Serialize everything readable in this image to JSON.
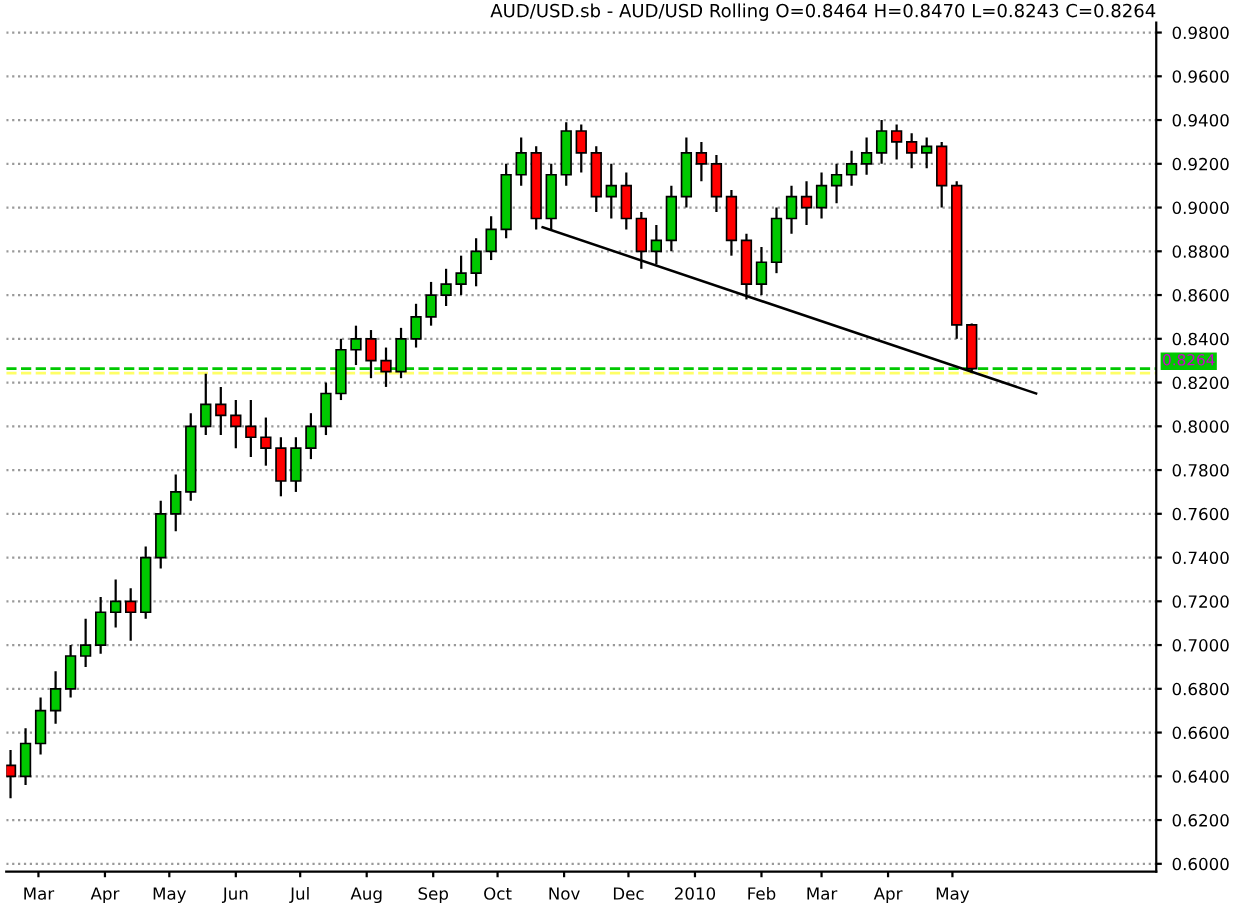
{
  "chart_data": {
    "type": "candlestick",
    "title": "AUD/USD.sb - AUD/USD Rolling O=0.8464 H=0.8470 L=0.8243 C=0.8264",
    "x": [
      "2009-02-16",
      "2009-02-23",
      "2009-03-02",
      "2009-03-09",
      "2009-03-16",
      "2009-03-23",
      "2009-03-30",
      "2009-04-06",
      "2009-04-13",
      "2009-04-20",
      "2009-04-27",
      "2009-05-04",
      "2009-05-11",
      "2009-05-18",
      "2009-05-25",
      "2009-06-01",
      "2009-06-08",
      "2009-06-15",
      "2009-06-22",
      "2009-06-29",
      "2009-07-06",
      "2009-07-13",
      "2009-07-20",
      "2009-07-27",
      "2009-08-03",
      "2009-08-10",
      "2009-08-17",
      "2009-08-24",
      "2009-08-31",
      "2009-09-07",
      "2009-09-14",
      "2009-09-21",
      "2009-09-28",
      "2009-10-05",
      "2009-10-12",
      "2009-10-19",
      "2009-10-26",
      "2009-11-02",
      "2009-11-09",
      "2009-11-16",
      "2009-11-23",
      "2009-11-30",
      "2009-12-07",
      "2009-12-14",
      "2009-12-21",
      "2009-12-28",
      "2010-01-04",
      "2010-01-11",
      "2010-01-18",
      "2010-01-25",
      "2010-02-01",
      "2010-02-08",
      "2010-02-15",
      "2010-02-22",
      "2010-03-01",
      "2010-03-08",
      "2010-03-15",
      "2010-03-22",
      "2010-03-29",
      "2010-04-05",
      "2010-04-12",
      "2010-04-19",
      "2010-04-26",
      "2010-05-03",
      "2010-05-10"
    ],
    "ohlc": [
      [
        0.645,
        0.652,
        0.63,
        0.64
      ],
      [
        0.64,
        0.662,
        0.636,
        0.655
      ],
      [
        0.655,
        0.676,
        0.65,
        0.67
      ],
      [
        0.67,
        0.688,
        0.664,
        0.68
      ],
      [
        0.68,
        0.7,
        0.676,
        0.695
      ],
      [
        0.695,
        0.712,
        0.69,
        0.7
      ],
      [
        0.7,
        0.722,
        0.696,
        0.715
      ],
      [
        0.715,
        0.73,
        0.708,
        0.72
      ],
      [
        0.72,
        0.726,
        0.702,
        0.715
      ],
      [
        0.715,
        0.745,
        0.712,
        0.74
      ],
      [
        0.74,
        0.766,
        0.735,
        0.76
      ],
      [
        0.76,
        0.778,
        0.752,
        0.77
      ],
      [
        0.77,
        0.806,
        0.766,
        0.8
      ],
      [
        0.8,
        0.824,
        0.796,
        0.81
      ],
      [
        0.81,
        0.818,
        0.796,
        0.805
      ],
      [
        0.805,
        0.812,
        0.79,
        0.8
      ],
      [
        0.8,
        0.812,
        0.786,
        0.795
      ],
      [
        0.795,
        0.804,
        0.782,
        0.79
      ],
      [
        0.79,
        0.795,
        0.768,
        0.775
      ],
      [
        0.775,
        0.795,
        0.77,
        0.79
      ],
      [
        0.79,
        0.806,
        0.785,
        0.8
      ],
      [
        0.8,
        0.82,
        0.796,
        0.815
      ],
      [
        0.815,
        0.84,
        0.812,
        0.835
      ],
      [
        0.835,
        0.846,
        0.828,
        0.84
      ],
      [
        0.84,
        0.844,
        0.822,
        0.83
      ],
      [
        0.83,
        0.836,
        0.818,
        0.825
      ],
      [
        0.825,
        0.845,
        0.822,
        0.84
      ],
      [
        0.84,
        0.856,
        0.836,
        0.85
      ],
      [
        0.85,
        0.866,
        0.846,
        0.86
      ],
      [
        0.86,
        0.872,
        0.855,
        0.865
      ],
      [
        0.865,
        0.878,
        0.86,
        0.87
      ],
      [
        0.87,
        0.886,
        0.864,
        0.88
      ],
      [
        0.88,
        0.896,
        0.876,
        0.89
      ],
      [
        0.89,
        0.92,
        0.886,
        0.915
      ],
      [
        0.915,
        0.932,
        0.91,
        0.925
      ],
      [
        0.925,
        0.928,
        0.89,
        0.895
      ],
      [
        0.895,
        0.92,
        0.89,
        0.915
      ],
      [
        0.915,
        0.939,
        0.91,
        0.935
      ],
      [
        0.935,
        0.938,
        0.916,
        0.925
      ],
      [
        0.925,
        0.928,
        0.898,
        0.905
      ],
      [
        0.905,
        0.92,
        0.895,
        0.91
      ],
      [
        0.91,
        0.916,
        0.89,
        0.895
      ],
      [
        0.895,
        0.898,
        0.872,
        0.88
      ],
      [
        0.88,
        0.892,
        0.874,
        0.885
      ],
      [
        0.885,
        0.91,
        0.88,
        0.905
      ],
      [
        0.905,
        0.932,
        0.9,
        0.925
      ],
      [
        0.925,
        0.93,
        0.912,
        0.92
      ],
      [
        0.92,
        0.924,
        0.898,
        0.905
      ],
      [
        0.905,
        0.908,
        0.878,
        0.885
      ],
      [
        0.885,
        0.888,
        0.858,
        0.865
      ],
      [
        0.865,
        0.882,
        0.86,
        0.875
      ],
      [
        0.875,
        0.9,
        0.87,
        0.895
      ],
      [
        0.895,
        0.91,
        0.888,
        0.905
      ],
      [
        0.905,
        0.912,
        0.892,
        0.9
      ],
      [
        0.9,
        0.916,
        0.895,
        0.91
      ],
      [
        0.91,
        0.92,
        0.902,
        0.915
      ],
      [
        0.915,
        0.926,
        0.91,
        0.92
      ],
      [
        0.92,
        0.932,
        0.915,
        0.925
      ],
      [
        0.925,
        0.94,
        0.92,
        0.935
      ],
      [
        0.935,
        0.938,
        0.922,
        0.93
      ],
      [
        0.93,
        0.934,
        0.918,
        0.925
      ],
      [
        0.925,
        0.932,
        0.918,
        0.928
      ],
      [
        0.928,
        0.93,
        0.9,
        0.91
      ],
      [
        0.91,
        0.912,
        0.84,
        0.8464
      ],
      [
        0.8464,
        0.847,
        0.8243,
        0.8264
      ]
    ],
    "colors": [
      "#ff0000",
      "#00c800",
      "#00c800",
      "#00c800",
      "#00c800",
      "#00c800",
      "#00c800",
      "#00c800",
      "#ff0000",
      "#00c800",
      "#00c800",
      "#00c800",
      "#00c800",
      "#00c800",
      "#ff0000",
      "#ff0000",
      "#ff0000",
      "#ff0000",
      "#ff0000",
      "#00c800",
      "#00c800",
      "#00c800",
      "#00c800",
      "#00c800",
      "#ff0000",
      "#ff0000",
      "#00c800",
      "#00c800",
      "#00c800",
      "#00c800",
      "#00c800",
      "#00c800",
      "#00c800",
      "#00c800",
      "#00c800",
      "#ff0000",
      "#00c800",
      "#00c800",
      "#ff0000",
      "#ff0000",
      "#00c800",
      "#ff0000",
      "#ff0000",
      "#00c800",
      "#00c800",
      "#00c800",
      "#ff0000",
      "#ff0000",
      "#ff0000",
      "#ff0000",
      "#00c800",
      "#00c800",
      "#00c800",
      "#ff0000",
      "#00c800",
      "#00c800",
      "#00c800",
      "#00c800",
      "#00c800",
      "#ff0000",
      "#ff0000",
      "#00c800",
      "#ff0000",
      "#ff0000",
      "#ff0000"
    ],
    "series": [
      {
        "type": "line",
        "x": [
          "2009-10-22",
          "2010-06-09"
        ],
        "values": [
          0.891,
          0.815
        ],
        "color": "#000000"
      }
    ],
    "ref_lines": [
      {
        "axis": "y",
        "value": 0.8264,
        "label": "0.8264",
        "color": "#00c800",
        "line_style": "dashed"
      },
      {
        "axis": "y",
        "value": 0.8243,
        "label": null,
        "color": "#ffff66",
        "line_style": "dashed"
      }
    ],
    "xlim": [
      "2009-02-14",
      "2010-08-04"
    ],
    "xticks": [
      {
        "value": "2009-03-01",
        "label": "Mar"
      },
      {
        "value": "2009-04-01",
        "label": "Apr"
      },
      {
        "value": "2009-05-01",
        "label": "May"
      },
      {
        "value": "2009-06-01",
        "label": "Jun"
      },
      {
        "value": "2009-07-01",
        "label": "Jul"
      },
      {
        "value": "2009-08-01",
        "label": "Aug"
      },
      {
        "value": "2009-09-01",
        "label": "Sep"
      },
      {
        "value": "2009-10-01",
        "label": "Oct"
      },
      {
        "value": "2009-11-01",
        "label": "Nov"
      },
      {
        "value": "2009-12-01",
        "label": "Dec"
      },
      {
        "value": "2010-01-01",
        "label": "2010"
      },
      {
        "value": "2010-02-01",
        "label": "Feb"
      },
      {
        "value": "2010-03-01",
        "label": "Mar"
      },
      {
        "value": "2010-04-01",
        "label": "Apr"
      },
      {
        "value": "2010-05-01",
        "label": "May"
      }
    ],
    "ylim": [
      0.5964,
      0.9845
    ],
    "yticks": [
      {
        "value": 0.6,
        "label": "0.6000"
      },
      {
        "value": 0.62,
        "label": "0.6200"
      },
      {
        "value": 0.64,
        "label": "0.6400"
      },
      {
        "value": 0.66,
        "label": "0.6600"
      },
      {
        "value": 0.68,
        "label": "0.6800"
      },
      {
        "value": 0.7,
        "label": "0.7000"
      },
      {
        "value": 0.72,
        "label": "0.7200"
      },
      {
        "value": 0.74,
        "label": "0.7400"
      },
      {
        "value": 0.76,
        "label": "0.7600"
      },
      {
        "value": 0.78,
        "label": "0.7800"
      },
      {
        "value": 0.8,
        "label": "0.8000"
      },
      {
        "value": 0.82,
        "label": "0.8200"
      },
      {
        "value": 0.84,
        "label": "0.8400"
      },
      {
        "value": 0.86,
        "label": "0.8600"
      },
      {
        "value": 0.88,
        "label": "0.8800"
      },
      {
        "value": 0.9,
        "label": "0.9000"
      },
      {
        "value": 0.92,
        "label": "0.9200"
      },
      {
        "value": 0.94,
        "label": "0.9400"
      },
      {
        "value": 0.96,
        "label": "0.9600"
      },
      {
        "value": 0.98,
        "label": "0.9800"
      }
    ],
    "grid": "y"
  }
}
